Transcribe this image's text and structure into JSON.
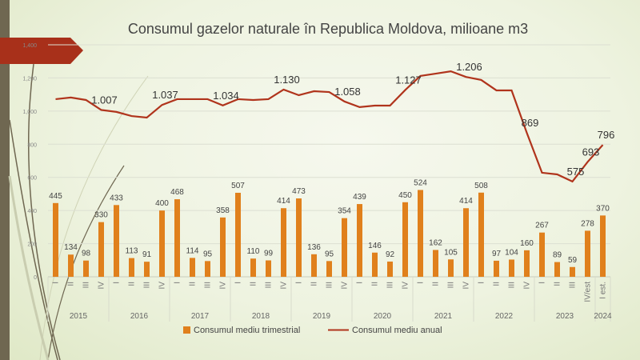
{
  "chart_data": {
    "type": "bar+line",
    "title": "Consumul gazelor naturale în Republica Moldova, milioane m3",
    "ylim": [
      0,
      1400
    ],
    "yticks": [
      "0",
      "200",
      "400",
      "600",
      "800",
      "1,000",
      "1,200",
      "1,400"
    ],
    "years": [
      {
        "label": "2015",
        "count": 4
      },
      {
        "label": "2016",
        "count": 4
      },
      {
        "label": "2017",
        "count": 4
      },
      {
        "label": "2018",
        "count": 4
      },
      {
        "label": "2019",
        "count": 4
      },
      {
        "label": "2020",
        "count": 4
      },
      {
        "label": "2021",
        "count": 4
      },
      {
        "label": "2022",
        "count": 4
      },
      {
        "label": "2023",
        "count": 4
      },
      {
        "label": "2024",
        "count": 1
      }
    ],
    "categories": [
      "I",
      "II",
      "III",
      "IV",
      "I",
      "II",
      "III",
      "IV",
      "I",
      "II",
      "III",
      "IV",
      "I",
      "II",
      "III",
      "IV",
      "I",
      "II",
      "III",
      "IV",
      "I",
      "II",
      "III",
      "IV",
      "I",
      "II",
      "III",
      "IV",
      "I",
      "II",
      "III",
      "IV",
      "I",
      "II",
      "III",
      "IV/est",
      "I est."
    ],
    "series": [
      {
        "name": "Consumul mediu trimestrial",
        "type": "bar",
        "color": "#e0801c",
        "values": [
          445,
          134,
          98,
          330,
          433,
          113,
          91,
          400,
          468,
          114,
          95,
          358,
          507,
          110,
          99,
          414,
          473,
          136,
          95,
          354,
          439,
          146,
          92,
          450,
          524,
          162,
          105,
          414,
          508,
          97,
          104,
          160,
          267,
          89,
          59,
          278,
          370
        ]
      },
      {
        "name": "Consumul mediu anual",
        "type": "line",
        "color": "#b0341c",
        "values": [
          1072,
          1082,
          1067,
          1007,
          995,
          970,
          961,
          1037,
          1072,
          1072,
          1072,
          1034,
          1072,
          1067,
          1072,
          1130,
          1096,
          1120,
          1115,
          1058,
          1024,
          1033,
          1033,
          1127,
          1212,
          1226,
          1240,
          1206,
          1188,
          1125,
          1125,
          869,
          628,
          618,
          575,
          693,
          796
        ],
        "labels": [
          "",
          "",
          "",
          "1.007",
          "",
          "",
          "",
          "1.037",
          "",
          "",
          "",
          "1.034",
          "",
          "",
          "",
          "1.130",
          "",
          "",
          "",
          "1.058",
          "",
          "",
          "",
          "1.127",
          "",
          "",
          "",
          "1.206",
          "",
          "",
          "",
          "869",
          "",
          "",
          "575",
          "693",
          "796"
        ]
      }
    ],
    "legend": "bottom"
  }
}
